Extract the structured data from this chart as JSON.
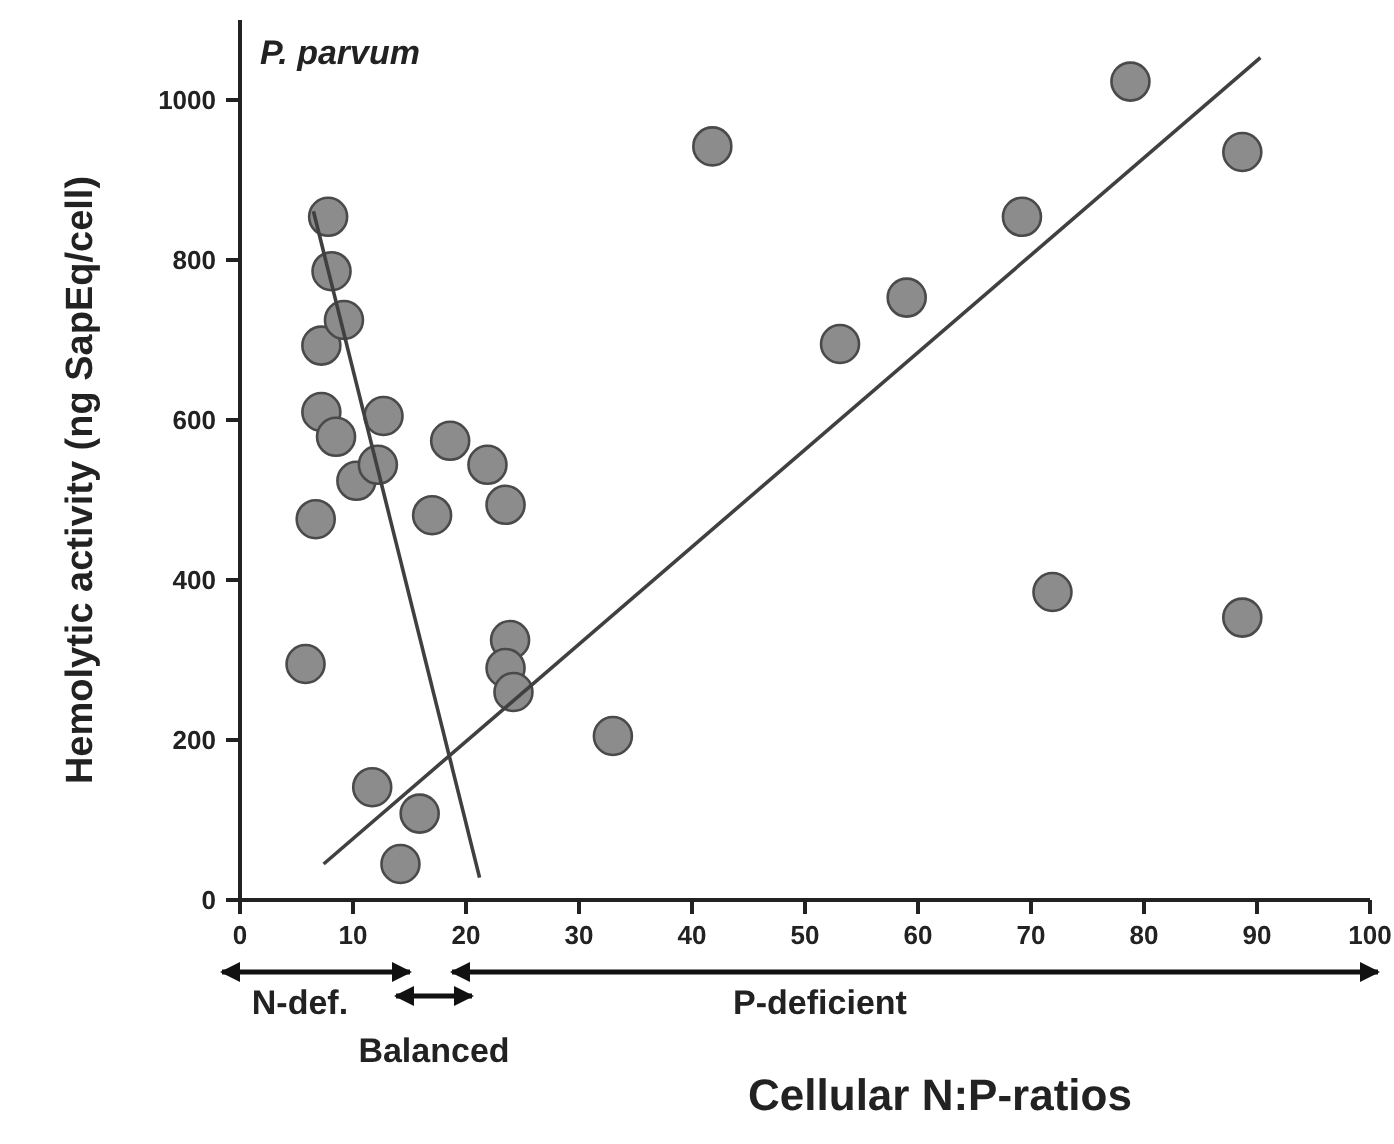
{
  "chart_data": {
    "type": "scatter",
    "title": "P. parvum",
    "xlabel": "Cellular N:P-ratios",
    "ylabel": "Hemolytic activity (ng SapEq/cell)",
    "xlim": [
      0,
      100
    ],
    "xticks": [
      0,
      10,
      20,
      30,
      40,
      50,
      60,
      70,
      80,
      90,
      100
    ],
    "ylim": [
      0,
      1100
    ],
    "yticks": [
      0,
      200,
      400,
      600,
      800,
      1000
    ],
    "grid": false,
    "marker": "circle",
    "series": [
      {
        "color": "#8c8c8c",
        "x": [
          5.8,
          6.7,
          7.2,
          7.2,
          7.8,
          8.1,
          8.5,
          9.2,
          10.3,
          12.7,
          12.2,
          11.7,
          15.9,
          14.2,
          17.0,
          18.6,
          21.9,
          23.5,
          23.9,
          23.5,
          24.2,
          33.0,
          41.8,
          53.1,
          59.0,
          69.2,
          78.8,
          88.7,
          71.9,
          88.7
        ],
        "values": [
          295,
          476,
          610,
          693,
          854,
          786,
          579,
          725,
          524,
          605,
          544,
          141,
          108,
          45,
          481,
          574,
          544,
          494,
          325,
          290,
          260,
          205,
          942,
          695,
          753,
          854,
          1023,
          935,
          385,
          353
        ]
      },
      {
        "type": "line",
        "color": "#404040",
        "marker": "none",
        "x": [
          6.5,
          21.2
        ],
        "values": [
          861,
          28
        ]
      },
      {
        "type": "line",
        "color": "#404040",
        "marker": "none",
        "x": [
          7.4,
          90.3
        ],
        "values": [
          45,
          1053
        ]
      }
    ],
    "annotations": [
      "N-def.",
      "Balanced",
      "P-deficient"
    ]
  }
}
